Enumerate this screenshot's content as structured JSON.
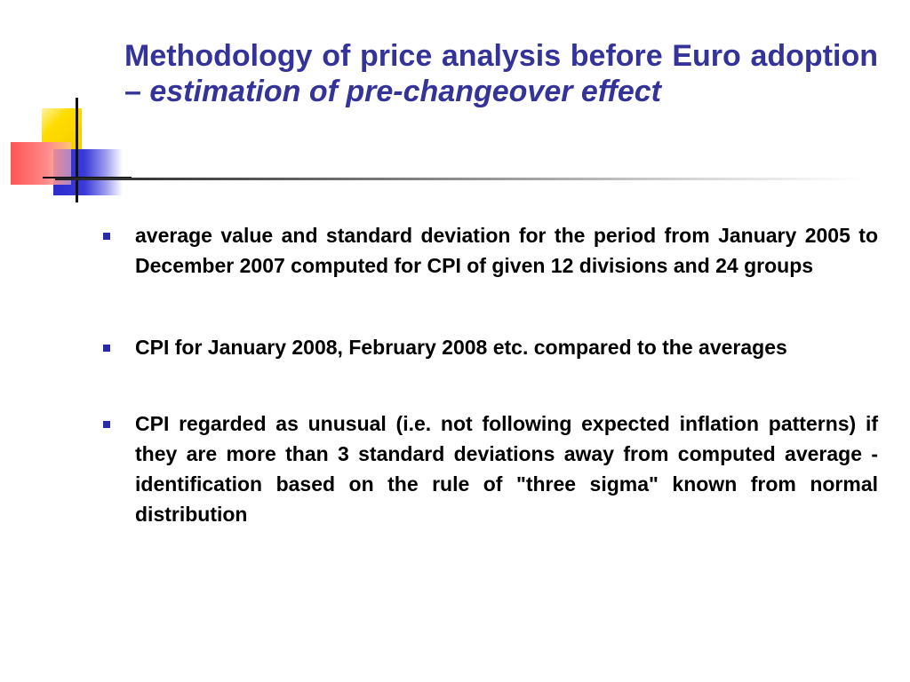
{
  "slide": {
    "title_main": "Methodology of price analysis before Euro adoption – ",
    "title_italic": "estimation of pre-changeover effect",
    "bullets": [
      {
        "text": "average value and standard deviation for the period from January 2005 to December 2007 computed for CPI of given 12 divisions and 24 groups"
      },
      {
        "text": "CPI for January 2008, February 2008 etc. compared to the averages"
      },
      {
        "text": "CPI regarded as unusual (i.e. not following expected inflation patterns) if they are more than 3 standard deviations away from computed average - identification based on the rule of \"three sigma\" known from normal distribution"
      }
    ]
  },
  "colors": {
    "title": "#333399",
    "bullet_marker": "#2a2aa8",
    "body_text": "#000000",
    "deco_yellow": "#ffdd00",
    "deco_blue": "#3a3ad8",
    "deco_red": "#ff5555"
  }
}
